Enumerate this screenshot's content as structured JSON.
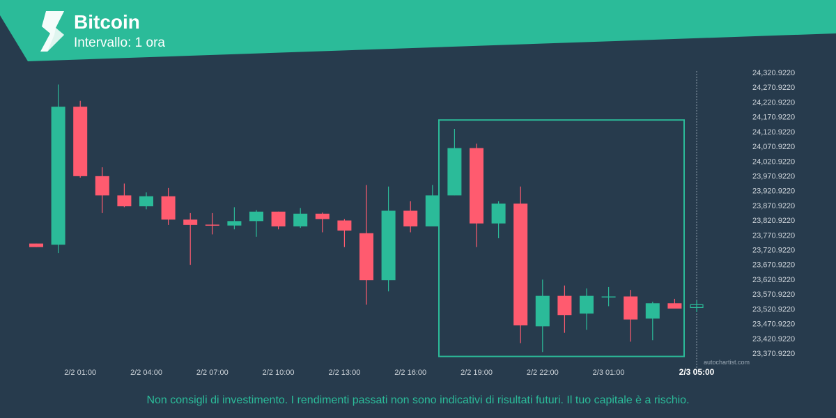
{
  "header": {
    "title": "Bitcoin",
    "subtitle": "Intervallo: 1 ora",
    "band_color": "#2bbb99",
    "logo_icon": "autochartist-logo-icon"
  },
  "chart_data": {
    "type": "candlestick",
    "y_axis_labels": [
      "24,320.9220",
      "24,270.9220",
      "24,220.9220",
      "24,170.9220",
      "24,120.9220",
      "24,070.9220",
      "24,020.9220",
      "23,970.9220",
      "23,920.9220",
      "23,870.9220",
      "23,820.9220",
      "23,770.9220",
      "23,720.9220",
      "23,670.9220",
      "23,620.9220",
      "23,570.9220",
      "23,520.9220",
      "23,470.9220",
      "23,420.9220",
      "23,370.9220"
    ],
    "y_ticks": [
      24320.922,
      24270.922,
      24220.922,
      24170.922,
      24120.922,
      24070.922,
      24020.922,
      23970.922,
      23920.922,
      23870.922,
      23820.922,
      23770.922,
      23720.922,
      23670.922,
      23620.922,
      23570.922,
      23520.922,
      23470.922,
      23420.922,
      23370.922
    ],
    "ylim": [
      23350,
      24345
    ],
    "x_labels": [
      {
        "label": "2/2 01:00",
        "index": 2
      },
      {
        "label": "2/2 04:00",
        "index": 5
      },
      {
        "label": "2/2 07:00",
        "index": 8
      },
      {
        "label": "2/2 10:00",
        "index": 11
      },
      {
        "label": "2/2 13:00",
        "index": 14
      },
      {
        "label": "2/2 16:00",
        "index": 17
      },
      {
        "label": "2/2 19:00",
        "index": 20
      },
      {
        "label": "2/2 22:00",
        "index": 23
      },
      {
        "label": "2/3 01:00",
        "index": 26
      },
      {
        "label": "2/3 05:00",
        "index": 30,
        "current": true
      }
    ],
    "candles": [
      {
        "o": 23742,
        "h": 23742,
        "l": 23730,
        "c": 23730
      },
      {
        "o": 23738,
        "h": 24280,
        "l": 23710,
        "c": 24205
      },
      {
        "o": 24205,
        "h": 24225,
        "l": 23965,
        "c": 23970
      },
      {
        "o": 23970,
        "h": 24000,
        "l": 23845,
        "c": 23905
      },
      {
        "o": 23905,
        "h": 23945,
        "l": 23865,
        "c": 23868
      },
      {
        "o": 23868,
        "h": 23915,
        "l": 23858,
        "c": 23902
      },
      {
        "o": 23902,
        "h": 23930,
        "l": 23805,
        "c": 23823
      },
      {
        "o": 23823,
        "h": 23845,
        "l": 23670,
        "c": 23805
      },
      {
        "o": 23806,
        "h": 23845,
        "l": 23773,
        "c": 23803
      },
      {
        "o": 23803,
        "h": 23865,
        "l": 23790,
        "c": 23818
      },
      {
        "o": 23818,
        "h": 23855,
        "l": 23765,
        "c": 23850
      },
      {
        "o": 23850,
        "h": 23850,
        "l": 23790,
        "c": 23800
      },
      {
        "o": 23800,
        "h": 23862,
        "l": 23795,
        "c": 23843
      },
      {
        "o": 23843,
        "h": 23847,
        "l": 23780,
        "c": 23825
      },
      {
        "o": 23820,
        "h": 23825,
        "l": 23730,
        "c": 23786
      },
      {
        "o": 23777,
        "h": 23940,
        "l": 23535,
        "c": 23618
      },
      {
        "o": 23618,
        "h": 23935,
        "l": 23580,
        "c": 23853
      },
      {
        "o": 23853,
        "h": 23885,
        "l": 23780,
        "c": 23800
      },
      {
        "o": 23800,
        "h": 23940,
        "l": 23800,
        "c": 23905
      },
      {
        "o": 23905,
        "h": 24130,
        "l": 23905,
        "c": 24065
      },
      {
        "o": 24065,
        "h": 24080,
        "l": 23730,
        "c": 23810
      },
      {
        "o": 23810,
        "h": 23885,
        "l": 23760,
        "c": 23877
      },
      {
        "o": 23877,
        "h": 23935,
        "l": 23405,
        "c": 23465
      },
      {
        "o": 23462,
        "h": 23620,
        "l": 23375,
        "c": 23565
      },
      {
        "o": 23565,
        "h": 23600,
        "l": 23440,
        "c": 23500
      },
      {
        "o": 23505,
        "h": 23590,
        "l": 23450,
        "c": 23565
      },
      {
        "o": 23563,
        "h": 23595,
        "l": 23530,
        "c": 23563
      },
      {
        "o": 23563,
        "h": 23585,
        "l": 23410,
        "c": 23485
      },
      {
        "o": 23488,
        "h": 23545,
        "l": 23415,
        "c": 23540
      },
      {
        "o": 23540,
        "h": 23555,
        "l": 23525,
        "c": 23522
      },
      {
        "o": 23530,
        "h": 23550,
        "l": 23510,
        "c": 23535
      }
    ],
    "pattern_box": {
      "start_index": 18,
      "end_index": 30,
      "top": 24160,
      "bottom": 23360
    },
    "current_candle_index": 30,
    "colors": {
      "up": "#2bbb99",
      "down": "#ff5b6f",
      "box": "#2bbb99",
      "axis_text": "#d0d6dc",
      "background": "#273b4d"
    },
    "watermark": "autochartist.com"
  },
  "footer": {
    "disclaimer": "Non consigli di investimento. I rendimenti passati non sono indicativi di risultati futuri. Il tuo capitale è a rischio."
  }
}
